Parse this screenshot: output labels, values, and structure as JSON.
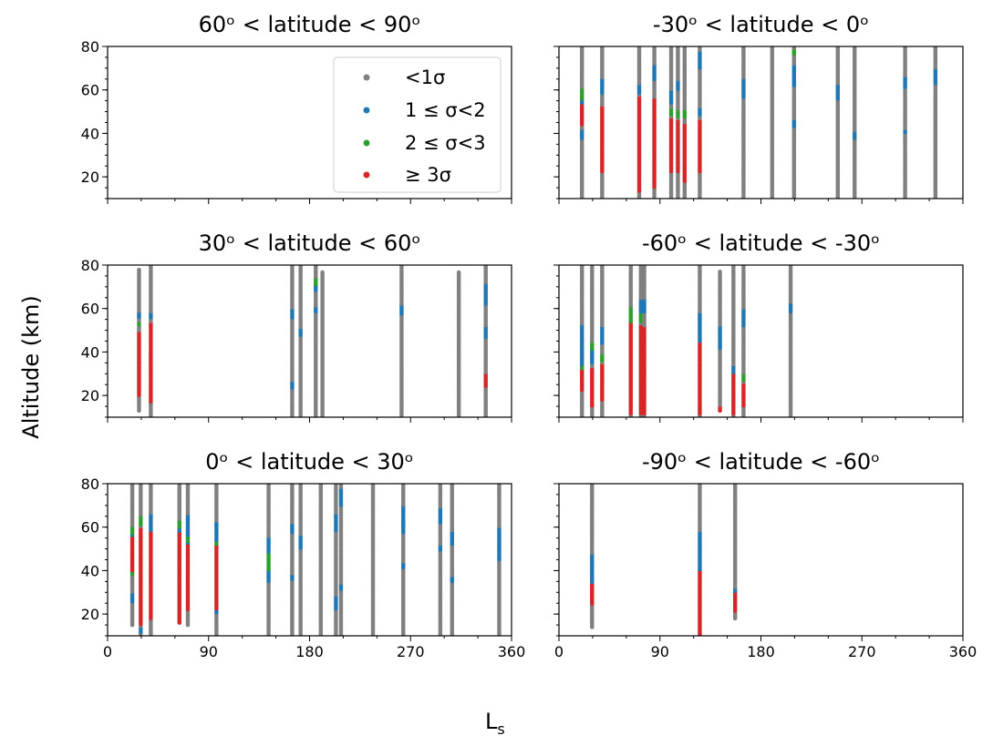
{
  "figure": {
    "ylabel": "Altitude (km)",
    "xlabel_main": "L",
    "xlabel_sub": "s"
  },
  "legend": {
    "placement": "top-right of first panel",
    "entries": [
      {
        "label": "<1σ",
        "color": "#808080"
      },
      {
        "label": "1 ≤ σ<2",
        "color": "#1f77b4"
      },
      {
        "label": "2 ≤ σ<3",
        "color": "#2ca02c"
      },
      {
        "label": " ≥ 3σ",
        "color": "#d62728"
      }
    ]
  },
  "chart_data": [
    {
      "type": "scatter",
      "title": "60ᵒ < latitude < 90ᵒ",
      "xlim": [
        0,
        360
      ],
      "ylim": [
        10,
        80
      ],
      "xticks": [],
      "yticks": [
        20,
        40,
        60,
        80
      ],
      "profiles": []
    },
    {
      "type": "scatter",
      "title": "-30ᵒ < latitude < 0ᵒ",
      "xlim": [
        0,
        360
      ],
      "ylim": [
        10,
        80
      ],
      "xticks": [],
      "yticks": [],
      "profiles": [
        {
          "ls": 20,
          "ymin": 10,
          "ymax": 80,
          "blue": [
            [
              37,
              42
            ],
            [
              54,
              59
            ]
          ],
          "green": [
            [
              55,
              61
            ]
          ],
          "red": [
            [
              44,
              54
            ]
          ]
        },
        {
          "ls": 38,
          "ymin": 10,
          "ymax": 80,
          "blue": [
            [
              58,
              65
            ]
          ],
          "green": [],
          "red": [
            [
              22,
              53
            ]
          ]
        },
        {
          "ls": 72,
          "ymin": 10,
          "ymax": 80,
          "blue": [
            [
              58,
              63
            ]
          ],
          "green": [
            [
              47,
              51
            ]
          ],
          "red": [
            [
              13,
              57
            ]
          ]
        },
        {
          "ls": 85,
          "ymin": 10,
          "ymax": 80,
          "blue": [
            [
              64,
              72
            ]
          ],
          "green": [],
          "red": [
            [
              15,
              56
            ]
          ]
        },
        {
          "ls": 100,
          "ymin": 10,
          "ymax": 80,
          "blue": [
            [
              54,
              60
            ]
          ],
          "green": [
            [
              48,
              52
            ]
          ],
          "red": [
            [
              22,
              47
            ]
          ]
        },
        {
          "ls": 106,
          "ymin": 10,
          "ymax": 80,
          "blue": [
            [
              60,
              64
            ]
          ],
          "green": [
            [
              47,
              51
            ]
          ],
          "red": [
            [
              22,
              46
            ]
          ]
        },
        {
          "ls": 112,
          "ymin": 10,
          "ymax": 80,
          "blue": [],
          "green": [
            [
              47,
              51
            ]
          ],
          "red": [
            [
              18,
              45
            ]
          ]
        },
        {
          "ls": 125,
          "ymin": 10,
          "ymax": 80,
          "blue": [
            [
              48,
              52
            ],
            [
              70,
              78
            ]
          ],
          "green": [],
          "red": [
            [
              22,
              46
            ]
          ]
        },
        {
          "ls": 164,
          "ymin": 10,
          "ymax": 80,
          "blue": [
            [
              56,
              65
            ]
          ],
          "green": [],
          "red": []
        },
        {
          "ls": 190,
          "ymin": 10,
          "ymax": 80,
          "blue": [],
          "green": [],
          "red": []
        },
        {
          "ls": 209,
          "ymin": 10,
          "ymax": 80,
          "blue": [
            [
              43,
              46
            ],
            [
              62,
              72
            ]
          ],
          "green": [
            [
              76,
              79
            ]
          ],
          "red": []
        },
        {
          "ls": 248,
          "ymin": 10,
          "ymax": 80,
          "blue": [
            [
              55,
              63
            ]
          ],
          "green": [],
          "red": []
        },
        {
          "ls": 263,
          "ymin": 10,
          "ymax": 80,
          "blue": [
            [
              37,
              41
            ]
          ],
          "green": [],
          "red": []
        },
        {
          "ls": 308,
          "ymin": 10,
          "ymax": 80,
          "blue": [
            [
              40,
              42
            ],
            [
              61,
              66
            ]
          ],
          "green": [],
          "red": []
        },
        {
          "ls": 336,
          "ymin": 10,
          "ymax": 80,
          "blue": [
            [
              63,
              70
            ]
          ],
          "green": [],
          "red": []
        }
      ]
    },
    {
      "type": "scatter",
      "title": "30ᵒ < latitude < 60ᵒ",
      "xlim": [
        0,
        360
      ],
      "ylim": [
        10,
        80
      ],
      "xticks": [],
      "yticks": [
        20,
        40,
        60,
        80
      ],
      "profiles": [
        {
          "ls": 28,
          "ymin": 13,
          "ymax": 78,
          "blue": [
            [
              56,
              58
            ]
          ],
          "green": [
            [
              52,
              54
            ]
          ],
          "red": [
            [
              20,
              49
            ]
          ]
        },
        {
          "ls": 39,
          "ymin": 10,
          "ymax": 80,
          "blue": [
            [
              55,
              58
            ]
          ],
          "green": [
            [
              26,
              38
            ]
          ],
          "red": [
            [
              17,
              54
            ]
          ]
        },
        {
          "ls": 165,
          "ymin": 10,
          "ymax": 80,
          "blue": [
            [
              23,
              27
            ],
            [
              55,
              60
            ]
          ],
          "green": [],
          "red": []
        },
        {
          "ls": 172,
          "ymin": 10,
          "ymax": 80,
          "blue": [
            [
              47,
              51
            ]
          ],
          "green": [],
          "red": []
        },
        {
          "ls": 186,
          "ymin": 10,
          "ymax": 80,
          "blue": [
            [
              58,
              61
            ],
            [
              68,
              74
            ]
          ],
          "green": [
            [
              71,
              74
            ]
          ],
          "red": []
        },
        {
          "ls": 191,
          "ymin": 10,
          "ymax": 77,
          "blue": [],
          "green": [],
          "red": []
        },
        {
          "ls": 262,
          "ymin": 10,
          "ymax": 80,
          "blue": [
            [
              57,
              62
            ]
          ],
          "green": [],
          "red": []
        },
        {
          "ls": 313,
          "ymin": 10,
          "ymax": 77,
          "blue": [],
          "green": [],
          "red": []
        },
        {
          "ls": 337,
          "ymin": 10,
          "ymax": 80,
          "blue": [
            [
              46,
              52
            ],
            [
              62,
              72
            ]
          ],
          "green": [],
          "red": [
            [
              24,
              30
            ]
          ]
        }
      ]
    },
    {
      "type": "scatter",
      "title": "-60ᵒ < latitude < -30ᵒ",
      "xlim": [
        0,
        360
      ],
      "ylim": [
        10,
        80
      ],
      "xticks": [],
      "yticks": [],
      "profiles": [
        {
          "ls": 21,
          "ymin": 10,
          "ymax": 80,
          "blue": [
            [
              33,
              53
            ]
          ],
          "green": [
            [
              30,
              34
            ]
          ],
          "red": [
            [
              22,
              32
            ]
          ]
        },
        {
          "ls": 30,
          "ymin": 10,
          "ymax": 80,
          "blue": [
            [
              35,
              41
            ]
          ],
          "green": [
            [
              41,
              45
            ]
          ],
          "red": [
            [
              15,
              33
            ]
          ]
        },
        {
          "ls": 38,
          "ymin": 10,
          "ymax": 80,
          "blue": [
            [
              44,
              52
            ]
          ],
          "green": [
            [
              36,
              39
            ]
          ],
          "red": [
            [
              18,
              35
            ]
          ]
        },
        {
          "ls": 64,
          "ymin": 10,
          "ymax": 80,
          "blue": [],
          "green": [
            [
              54,
              61
            ]
          ],
          "red": [
            [
              11,
              54
            ]
          ]
        },
        {
          "ls": 73,
          "ymin": 10,
          "ymax": 80,
          "blue": [
            [
              58,
              64
            ]
          ],
          "green": [
            [
              54,
              58
            ]
          ],
          "red": [
            [
              11,
              53
            ]
          ]
        },
        {
          "ls": 76,
          "ymin": 10,
          "ymax": 80,
          "blue": [
            [
              58,
              64
            ]
          ],
          "green": [],
          "red": [
            [
              11,
              52
            ]
          ]
        },
        {
          "ls": 125,
          "ymin": 10,
          "ymax": 80,
          "blue": [
            [
              32,
              58
            ]
          ],
          "green": [
            [
              15,
              20
            ]
          ],
          "red": [
            [
              11,
              45
            ]
          ]
        },
        {
          "ls": 143,
          "ymin": 13,
          "ymax": 77,
          "blue": [
            [
              41,
              52
            ]
          ],
          "green": [],
          "red": [
            [
              12,
              15
            ]
          ]
        },
        {
          "ls": 155,
          "ymin": 10,
          "ymax": 80,
          "blue": [
            [
              30,
              34
            ]
          ],
          "green": [
            [
              27,
              30
            ]
          ],
          "red": [
            [
              11,
              30
            ]
          ]
        },
        {
          "ls": 164,
          "ymin": 10,
          "ymax": 80,
          "blue": [
            [
              52,
              60
            ]
          ],
          "green": [
            [
              27,
              30
            ]
          ],
          "red": [
            [
              15,
              26
            ]
          ]
        },
        {
          "ls": 206,
          "ymin": 10,
          "ymax": 80,
          "blue": [
            [
              58,
              63
            ]
          ],
          "green": [],
          "red": []
        }
      ]
    },
    {
      "type": "scatter",
      "title": "0ᵒ < latitude < 30ᵒ",
      "xlim": [
        0,
        360
      ],
      "ylim": [
        10,
        80
      ],
      "xticks": [
        "0",
        "90",
        "180",
        "270",
        "360"
      ],
      "yticks": [
        20,
        40,
        60,
        80
      ],
      "profiles": [
        {
          "ls": 22,
          "ymin": 15,
          "ymax": 80,
          "blue": [
            [
              25,
              30
            ],
            [
              55,
              58
            ]
          ],
          "green": [
            [
              38,
              41
            ],
            [
              57,
              60
            ]
          ],
          "red": [
            [
              40,
              56
            ]
          ]
        },
        {
          "ls": 30,
          "ymin": 10,
          "ymax": 80,
          "blue": [
            [
              11,
              14
            ],
            [
              57,
              60
            ]
          ],
          "green": [
            [
              16,
              20
            ],
            [
              61,
              65
            ]
          ],
          "red": [
            [
              15,
              60
            ]
          ]
        },
        {
          "ls": 39,
          "ymin": 10,
          "ymax": 80,
          "blue": [
            [
              58,
              66
            ]
          ],
          "green": [],
          "red": [
            [
              18,
              58
            ]
          ]
        },
        {
          "ls": 64,
          "ymin": 16,
          "ymax": 80,
          "blue": [
            [
              58,
              62
            ]
          ],
          "green": [
            [
              60,
              63
            ]
          ],
          "red": [
            [
              16,
              58
            ]
          ]
        },
        {
          "ls": 71,
          "ymin": 15,
          "ymax": 80,
          "blue": [
            [
              52,
              66
            ]
          ],
          "green": [
            [
              53,
              56
            ]
          ],
          "red": [
            [
              22,
              52
            ]
          ]
        },
        {
          "ls": 97,
          "ymin": 10,
          "ymax": 80,
          "blue": [
            [
              20,
              24
            ],
            [
              53,
              63
            ]
          ],
          "green": [
            [
              50,
              54
            ]
          ],
          "red": [
            [
              22,
              52
            ]
          ]
        },
        {
          "ls": 143,
          "ymin": 10,
          "ymax": 80,
          "blue": [
            [
              35,
              55
            ]
          ],
          "green": [
            [
              40,
              48
            ]
          ],
          "red": []
        },
        {
          "ls": 164,
          "ymin": 10,
          "ymax": 80,
          "blue": [
            [
              36,
              38
            ],
            [
              57,
              62
            ]
          ],
          "green": [],
          "red": []
        },
        {
          "ls": 172,
          "ymin": 10,
          "ymax": 80,
          "blue": [
            [
              50,
              56
            ]
          ],
          "green": [],
          "red": []
        },
        {
          "ls": 190,
          "ymin": 10,
          "ymax": 80,
          "blue": [],
          "green": [],
          "red": []
        },
        {
          "ls": 203,
          "ymin": 10,
          "ymax": 80,
          "blue": [
            [
              22,
              28
            ],
            [
              58,
              66
            ]
          ],
          "green": [],
          "red": []
        },
        {
          "ls": 208,
          "ymin": 10,
          "ymax": 80,
          "blue": [
            [
              31,
              34
            ],
            [
              70,
              78
            ]
          ],
          "green": [],
          "red": []
        },
        {
          "ls": 237,
          "ymin": 10,
          "ymax": 80,
          "blue": [],
          "green": [],
          "red": []
        },
        {
          "ls": 263,
          "ymin": 10,
          "ymax": 80,
          "blue": [
            [
              41,
              44
            ],
            [
              57,
              70
            ]
          ],
          "green": [],
          "red": []
        },
        {
          "ls": 296,
          "ymin": 10,
          "ymax": 80,
          "blue": [
            [
              49,
              52
            ],
            [
              62,
              69
            ]
          ],
          "green": [],
          "red": []
        },
        {
          "ls": 307,
          "ymin": 10,
          "ymax": 80,
          "blue": [
            [
              35,
              37
            ],
            [
              52,
              58
            ]
          ],
          "green": [],
          "red": []
        },
        {
          "ls": 349,
          "ymin": 10,
          "ymax": 80,
          "blue": [
            [
              45,
              60
            ]
          ],
          "green": [],
          "red": []
        }
      ]
    },
    {
      "type": "scatter",
      "title": "-90ᵒ < latitude < -60ᵒ",
      "xlim": [
        0,
        360
      ],
      "ylim": [
        10,
        80
      ],
      "xticks": [
        "0",
        "90",
        "180",
        "270",
        "360"
      ],
      "yticks": [],
      "profiles": [
        {
          "ls": 29,
          "ymin": 14,
          "ymax": 80,
          "blue": [
            [
              33,
              48
            ]
          ],
          "green": [],
          "red": [
            [
              24,
              34
            ]
          ]
        },
        {
          "ls": 126,
          "ymin": 10,
          "ymax": 80,
          "blue": [
            [
              39,
              58
            ]
          ],
          "green": [
            [
              31,
              34
            ],
            [
              22,
              24
            ]
          ],
          "red": [
            [
              10,
              40
            ]
          ]
        },
        {
          "ls": 157,
          "ymin": 18,
          "ymax": 80,
          "blue": [
            [
              29,
              32
            ]
          ],
          "green": [],
          "red": [
            [
              21,
              30
            ]
          ]
        }
      ]
    }
  ]
}
